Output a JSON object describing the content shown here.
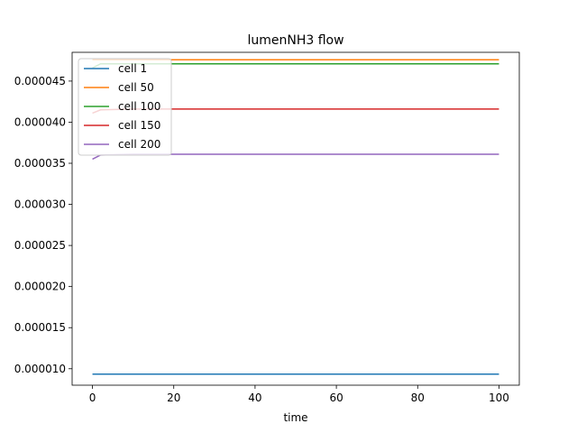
{
  "chart_data": {
    "type": "line",
    "title": "lumenNH3 flow",
    "xlabel": "time",
    "ylabel": "",
    "xlim": [
      -5,
      105
    ],
    "ylim": [
      8e-06,
      4.85e-05
    ],
    "xticks": [
      0,
      20,
      40,
      60,
      80,
      100
    ],
    "xtick_labels": [
      "0",
      "20",
      "40",
      "60",
      "80",
      "100"
    ],
    "yticks": [
      1e-05,
      1.5e-05,
      2e-05,
      2.5e-05,
      3e-05,
      3.5e-05,
      4e-05,
      4.5e-05
    ],
    "ytick_labels": [
      "0.000010",
      "0.000015",
      "0.000020",
      "0.000025",
      "0.000030",
      "0.000035",
      "0.000040",
      "0.000045"
    ],
    "legend_position": "top-left",
    "series": [
      {
        "name": "cell 1",
        "color": "#1f77b4",
        "x": [
          0,
          2,
          10,
          100
        ],
        "y": [
          9.35e-06,
          9.35e-06,
          9.35e-06,
          9.35e-06
        ]
      },
      {
        "name": "cell 50",
        "color": "#ff7f0e",
        "x": [
          0,
          2,
          10,
          100
        ],
        "y": [
          4.76e-05,
          4.76e-05,
          4.76e-05,
          4.76e-05
        ]
      },
      {
        "name": "cell 100",
        "color": "#2ca02c",
        "x": [
          0,
          2,
          10,
          100
        ],
        "y": [
          4.66e-05,
          4.71e-05,
          4.71e-05,
          4.71e-05
        ]
      },
      {
        "name": "cell 150",
        "color": "#d62728",
        "x": [
          0,
          2,
          10,
          100
        ],
        "y": [
          4.11e-05,
          4.15e-05,
          4.16e-05,
          4.16e-05
        ]
      },
      {
        "name": "cell 200",
        "color": "#9467bd",
        "x": [
          0,
          2,
          10,
          100
        ],
        "y": [
          3.55e-05,
          3.6e-05,
          3.61e-05,
          3.61e-05
        ]
      }
    ]
  }
}
